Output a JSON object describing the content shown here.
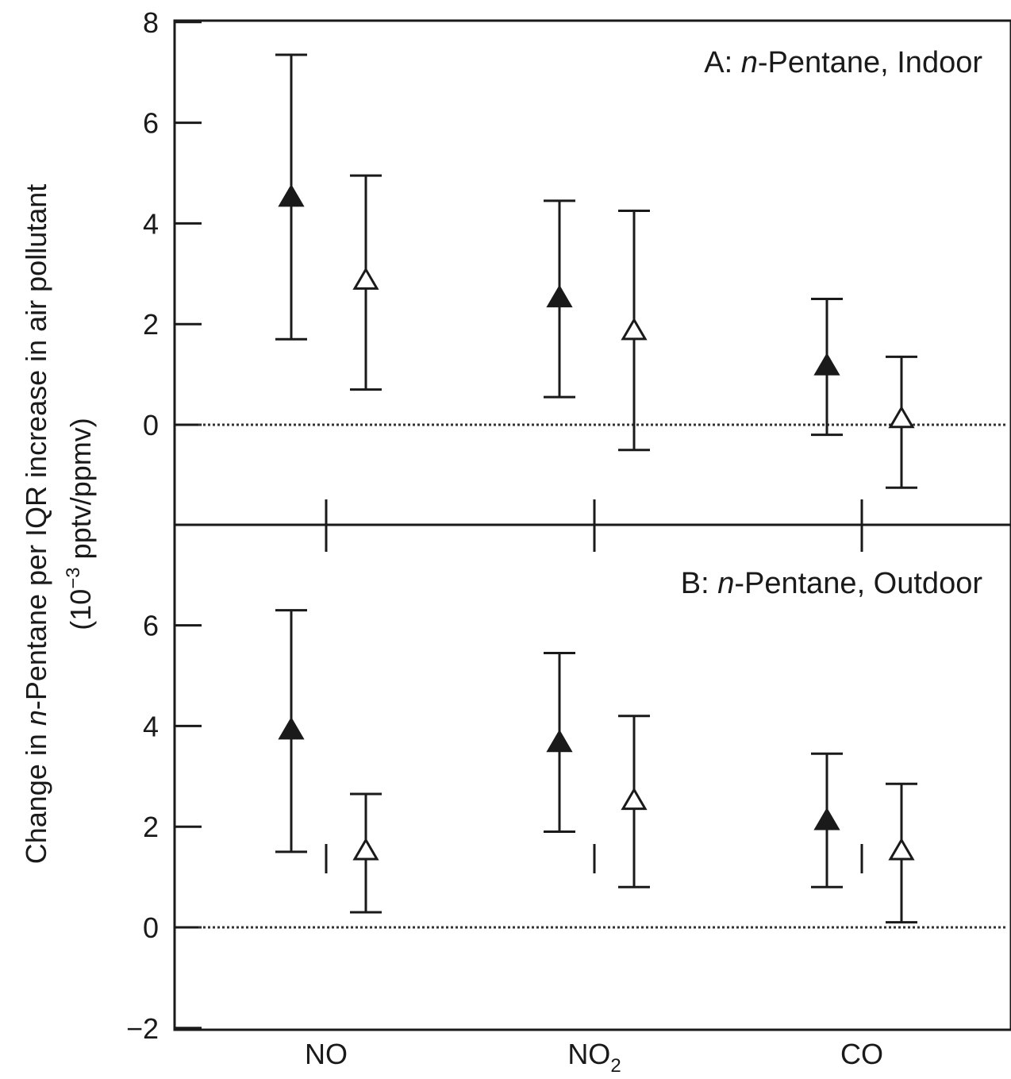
{
  "chart_data": [
    {
      "panel": "A",
      "type": "scatter",
      "title_prefix": "A: ",
      "title_italic": "n",
      "title_suffix": "-Pentane, Indoor",
      "ylim": [
        -2,
        8
      ],
      "yticks": [
        "8",
        "6",
        "4",
        "2",
        "0"
      ],
      "categories": [
        "NO",
        "NO2",
        "CO"
      ],
      "series": [
        {
          "marker": "filled-triangle",
          "points": [
            {
              "category": "NO",
              "value": 4.5,
              "lower": 1.7,
              "upper": 7.35
            },
            {
              "category": "NO2",
              "value": 2.5,
              "lower": 0.55,
              "upper": 4.45
            },
            {
              "category": "CO",
              "value": 1.15,
              "lower": -0.2,
              "upper": 2.5
            }
          ]
        },
        {
          "marker": "open-triangle",
          "points": [
            {
              "category": "NO",
              "value": 2.85,
              "lower": 0.7,
              "upper": 4.95
            },
            {
              "category": "NO2",
              "value": 1.85,
              "lower": -0.5,
              "upper": 4.25
            },
            {
              "category": "CO",
              "value": 0.1,
              "lower": -1.25,
              "upper": 1.35
            }
          ]
        }
      ],
      "reference_line": 0
    },
    {
      "panel": "B",
      "type": "scatter",
      "title_prefix": "B: ",
      "title_italic": "n",
      "title_suffix": "-Pentane, Outdoor",
      "ylim": [
        -2,
        8
      ],
      "yticks": [
        "6",
        "4",
        "2",
        "0",
        "−2"
      ],
      "categories": [
        "NO",
        "NO2",
        "CO"
      ],
      "series": [
        {
          "marker": "filled-triangle",
          "points": [
            {
              "category": "NO",
              "value": 3.9,
              "lower": 1.5,
              "upper": 6.3
            },
            {
              "category": "NO2",
              "value": 3.65,
              "lower": 1.9,
              "upper": 5.45
            },
            {
              "category": "CO",
              "value": 2.1,
              "lower": 0.8,
              "upper": 3.45
            }
          ]
        },
        {
          "marker": "open-triangle",
          "points": [
            {
              "category": "NO",
              "value": 1.5,
              "lower": 0.3,
              "upper": 2.65
            },
            {
              "category": "NO2",
              "value": 2.5,
              "lower": 0.8,
              "upper": 4.2
            },
            {
              "category": "CO",
              "value": 1.5,
              "lower": 0.1,
              "upper": 2.85
            }
          ]
        }
      ],
      "reference_line": 0
    }
  ],
  "x_tick_labels": {
    "NO": {
      "base": "NO",
      "sub": ""
    },
    "NO2": {
      "base": "NO",
      "sub": "2"
    },
    "CO": {
      "base": "CO",
      "sub": ""
    }
  },
  "ylabel": {
    "line1_prefix": "Change in ",
    "line1_italic": "n",
    "line1_suffix": "-Pentane per IQR increase in air pollutant",
    "line2_prefix": "(10",
    "line2_sup": "−3",
    "line2_suffix": " pptv/ppmv)"
  },
  "colors": {
    "axis": "#1a1a1a",
    "marker": "#1a1a1a",
    "reference_line": "#333333",
    "background": "#ffffff"
  }
}
